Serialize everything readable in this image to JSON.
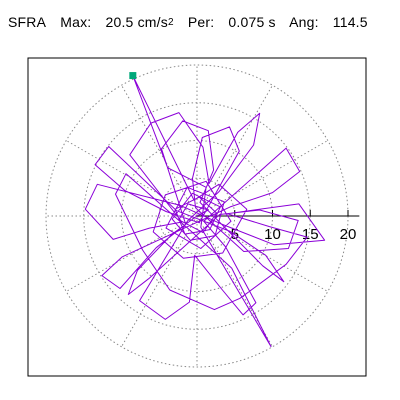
{
  "header": {
    "station": "SFRA",
    "max_label": "Max:",
    "max_value": "20.5 cm/s",
    "max_unit_exp": "2",
    "per_label": "Per:",
    "per_value": "0.075 s",
    "ang_label": "Ang:",
    "ang_value": "114.5"
  },
  "colors": {
    "trace": "#8B00D8",
    "marker": "#00A87A",
    "grid": "#888888",
    "axis": "#000000",
    "frame": "#000000"
  },
  "chart_data": {
    "type": "polar-particle-motion",
    "title": "",
    "xlabel": "",
    "ylabel": "",
    "radial_ticks": [
      "5",
      "10",
      "15",
      "20"
    ],
    "radial_max": 21.5,
    "angular_grid_step_deg": 30,
    "peak": {
      "amplitude": 20.5,
      "period": 0.075,
      "angle_deg": 114.5,
      "x": -8.5,
      "y": 18.6
    },
    "trace": [
      [
        0,
        0
      ],
      [
        1.5,
        0.8
      ],
      [
        -1.2,
        1.6
      ],
      [
        -2.4,
        -0.5
      ],
      [
        0.8,
        -2.2
      ],
      [
        2.6,
        0.4
      ],
      [
        0.3,
        2.5
      ],
      [
        -2.9,
        0.9
      ],
      [
        -1.6,
        -2.4
      ],
      [
        1.7,
        -1.8
      ],
      [
        3.1,
        1.2
      ],
      [
        -0.6,
        3.0
      ],
      [
        -3.3,
        -0.4
      ],
      [
        -0.9,
        -3.2
      ],
      [
        2.4,
        -2.6
      ],
      [
        3.6,
        1.9
      ],
      [
        -1.3,
        3.8
      ],
      [
        -4.1,
        -1.6
      ],
      [
        0.5,
        -4.3
      ],
      [
        4.5,
        -0.7
      ],
      [
        1.2,
        4.6
      ],
      [
        -4.2,
        2.8
      ],
      [
        -5.8,
        -2.1
      ],
      [
        -1.8,
        -5.6
      ],
      [
        3.4,
        -4.9
      ],
      [
        6.6,
        0.9
      ],
      [
        2.9,
        4.2
      ],
      [
        -0.4,
        2.1
      ],
      [
        -8.5,
        18.6
      ],
      [
        -3.9,
        6.4
      ],
      [
        1.2,
        3.8
      ],
      [
        0.5,
        -1.5
      ],
      [
        9.8,
        -17.3
      ],
      [
        4.6,
        -6.9
      ],
      [
        -0.8,
        -2.0
      ],
      [
        -9.4,
        5.6
      ],
      [
        -10.8,
        2.9
      ],
      [
        -7.2,
        -4.5
      ],
      [
        -3.6,
        -9.8
      ],
      [
        2.3,
        -12.4
      ],
      [
        5.7,
        -10.9
      ],
      [
        11.8,
        -6.4
      ],
      [
        14.6,
        -2.8
      ],
      [
        9.6,
        -1.4
      ],
      [
        4.0,
        0.3
      ],
      [
        13.5,
        1.6
      ],
      [
        16.9,
        -3.2
      ],
      [
        10.2,
        -3.8
      ],
      [
        3.1,
        -1.0
      ],
      [
        -2.2,
        1.4
      ],
      [
        -13.2,
        4.2
      ],
      [
        -14.8,
        0.9
      ],
      [
        -11.1,
        -3.1
      ],
      [
        -6.3,
        -1.6
      ],
      [
        -2.0,
        -0.8
      ],
      [
        -8.9,
        8.1
      ],
      [
        -6.1,
        12.3
      ],
      [
        -2.4,
        13.7
      ],
      [
        0.8,
        9.1
      ],
      [
        1.6,
        4.3
      ],
      [
        5.4,
        11.1
      ],
      [
        8.3,
        13.6
      ],
      [
        7.5,
        9.4
      ],
      [
        2.9,
        3.2
      ],
      [
        -1.2,
        -0.6
      ],
      [
        -7.6,
        -11.2
      ],
      [
        -4.2,
        -13.7
      ],
      [
        -1.0,
        -11.4
      ],
      [
        -0.3,
        -5.2
      ],
      [
        3.2,
        -9.6
      ],
      [
        6.1,
        -13.1
      ],
      [
        7.8,
        -11.5
      ],
      [
        3.8,
        -4.1
      ],
      [
        0.9,
        -0.7
      ],
      [
        11.8,
        9.0
      ],
      [
        13.6,
        5.9
      ],
      [
        10.0,
        3.1
      ],
      [
        4.4,
        1.2
      ],
      [
        -9.9,
        -5.4
      ],
      [
        -12.6,
        -7.9
      ],
      [
        -10.2,
        -9.6
      ],
      [
        -5.4,
        -4.2
      ],
      [
        -1.5,
        -1.1
      ],
      [
        -4.7,
        8.9
      ],
      [
        -1.9,
        12.6
      ],
      [
        1.5,
        11.3
      ],
      [
        2.2,
        6.1
      ],
      [
        0.4,
        1.8
      ],
      [
        8.7,
        -6.6
      ],
      [
        11.5,
        -8.7
      ],
      [
        9.1,
        -5.2
      ],
      [
        4.3,
        -2.0
      ],
      [
        -2.7,
        0.7
      ],
      [
        -11.7,
        9.2
      ],
      [
        -13.5,
        6.8
      ],
      [
        -9.6,
        3.4
      ],
      [
        -4.1,
        0.6
      ],
      [
        0.3,
        -0.9
      ],
      [
        5.6,
        8.6
      ],
      [
        4.3,
        11.8
      ],
      [
        0.7,
        10.4
      ],
      [
        -0.6,
        5.0
      ],
      [
        -0.2,
        1.1
      ],
      [
        6.2,
        -4.7
      ],
      [
        12.1,
        -4.3
      ],
      [
        13.4,
        -0.6
      ],
      [
        8.3,
        0.8
      ],
      [
        3.0,
        0.2
      ],
      [
        -6.4,
        -8.3
      ],
      [
        -9.1,
        -10.4
      ],
      [
        -7.9,
        -7.2
      ],
      [
        -3.3,
        -2.4
      ],
      [
        0.0,
        0.0
      ]
    ]
  }
}
